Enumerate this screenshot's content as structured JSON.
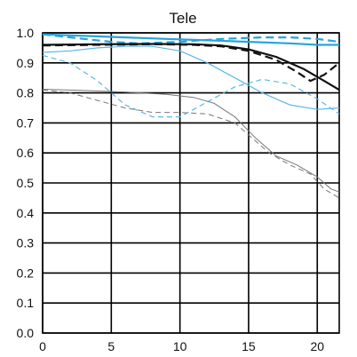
{
  "chart_data": {
    "type": "line",
    "title": "Tele",
    "xlabel": "",
    "ylabel": "",
    "xlim": [
      0,
      21.6
    ],
    "ylim": [
      0,
      1.0
    ],
    "x_ticks": [
      "0",
      "5",
      "10",
      "15",
      "20"
    ],
    "y_ticks": [
      "0.0",
      "0.1",
      "0.2",
      "0.3",
      "0.4",
      "0.5",
      "0.6",
      "0.7",
      "0.8",
      "0.9",
      "1.0"
    ],
    "grid": true,
    "series": [
      {
        "color": "#29a3dd",
        "style": "solid",
        "width": 2.2,
        "points": [
          [
            0,
            0.995
          ],
          [
            3,
            0.99
          ],
          [
            6,
            0.985
          ],
          [
            9,
            0.98
          ],
          [
            12,
            0.975
          ],
          [
            15,
            0.97
          ],
          [
            18,
            0.965
          ],
          [
            20,
            0.96
          ],
          [
            21.6,
            0.96
          ]
        ]
      },
      {
        "color": "#29a3dd",
        "style": "dashed",
        "width": 2.2,
        "points": [
          [
            0,
            0.995
          ],
          [
            3,
            0.98
          ],
          [
            5,
            0.97
          ],
          [
            7,
            0.965
          ],
          [
            10,
            0.97
          ],
          [
            13,
            0.98
          ],
          [
            16,
            0.985
          ],
          [
            18,
            0.985
          ],
          [
            20,
            0.98
          ],
          [
            21.6,
            0.97
          ]
        ]
      },
      {
        "color": "#111111",
        "style": "solid",
        "width": 2.2,
        "points": [
          [
            0,
            0.96
          ],
          [
            4,
            0.962
          ],
          [
            8,
            0.963
          ],
          [
            11,
            0.962
          ],
          [
            13,
            0.958
          ],
          [
            15,
            0.945
          ],
          [
            17,
            0.92
          ],
          [
            19,
            0.88
          ],
          [
            20.5,
            0.84
          ],
          [
            21.6,
            0.81
          ]
        ]
      },
      {
        "color": "#111111",
        "style": "dashed",
        "width": 2.2,
        "points": [
          [
            0,
            0.958
          ],
          [
            4,
            0.96
          ],
          [
            8,
            0.962
          ],
          [
            11,
            0.96
          ],
          [
            13,
            0.955
          ],
          [
            15,
            0.94
          ],
          [
            17,
            0.91
          ],
          [
            18.5,
            0.87
          ],
          [
            19.5,
            0.84
          ],
          [
            20.5,
            0.86
          ],
          [
            21.6,
            0.9
          ]
        ]
      },
      {
        "color": "#5bb8e6",
        "style": "solid",
        "width": 1.2,
        "points": [
          [
            0,
            0.935
          ],
          [
            2,
            0.94
          ],
          [
            4,
            0.95
          ],
          [
            6,
            0.955
          ],
          [
            8,
            0.955
          ],
          [
            10,
            0.94
          ],
          [
            12,
            0.9
          ],
          [
            14,
            0.85
          ],
          [
            16,
            0.8
          ],
          [
            18,
            0.76
          ],
          [
            20,
            0.745
          ],
          [
            21.6,
            0.75
          ]
        ]
      },
      {
        "color": "#5bb8e6",
        "style": "dashed",
        "width": 1.2,
        "points": [
          [
            0,
            0.925
          ],
          [
            2,
            0.9
          ],
          [
            4,
            0.84
          ],
          [
            6,
            0.76
          ],
          [
            8,
            0.72
          ],
          [
            10,
            0.72
          ],
          [
            12,
            0.77
          ],
          [
            14,
            0.82
          ],
          [
            16,
            0.845
          ],
          [
            18,
            0.83
          ],
          [
            20,
            0.78
          ],
          [
            21.6,
            0.73
          ]
        ]
      },
      {
        "color": "#777777",
        "style": "solid",
        "width": 1.0,
        "points": [
          [
            0,
            0.812
          ],
          [
            3,
            0.808
          ],
          [
            6,
            0.803
          ],
          [
            9,
            0.795
          ],
          [
            11,
            0.785
          ],
          [
            12.5,
            0.765
          ],
          [
            14,
            0.72
          ],
          [
            15.5,
            0.65
          ],
          [
            17,
            0.59
          ],
          [
            18.5,
            0.56
          ],
          [
            20,
            0.52
          ],
          [
            21,
            0.48
          ],
          [
            21.6,
            0.47
          ]
        ]
      },
      {
        "color": "#777777",
        "style": "dashed",
        "width": 1.0,
        "points": [
          [
            0,
            0.81
          ],
          [
            2,
            0.8
          ],
          [
            4,
            0.775
          ],
          [
            6,
            0.75
          ],
          [
            8,
            0.735
          ],
          [
            10,
            0.735
          ],
          [
            12,
            0.73
          ],
          [
            14,
            0.7
          ],
          [
            15,
            0.66
          ],
          [
            16.5,
            0.6
          ],
          [
            18,
            0.56
          ],
          [
            19.5,
            0.53
          ],
          [
            20.5,
            0.48
          ],
          [
            21.6,
            0.45
          ]
        ]
      }
    ]
  }
}
